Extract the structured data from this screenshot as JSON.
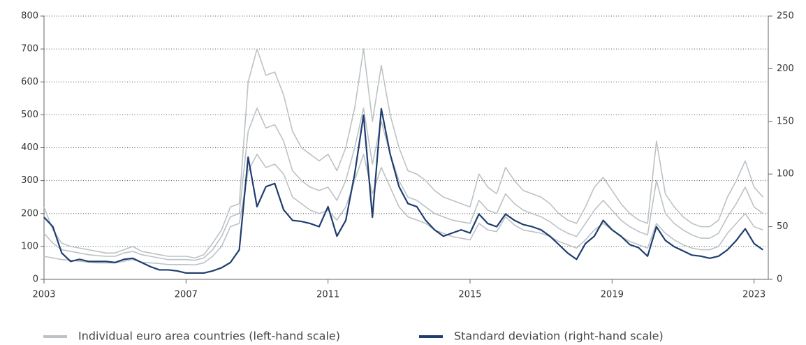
{
  "chart_data": {
    "type": "line",
    "x": [
      2003,
      2003.25,
      2003.5,
      2003.75,
      2004,
      2004.25,
      2004.5,
      2004.75,
      2005,
      2005.25,
      2005.5,
      2005.75,
      2006,
      2006.25,
      2006.5,
      2006.75,
      2007,
      2007.25,
      2007.5,
      2007.75,
      2008,
      2008.25,
      2008.5,
      2008.75,
      2009,
      2009.25,
      2009.5,
      2009.75,
      2010,
      2010.25,
      2010.5,
      2010.75,
      2011,
      2011.25,
      2011.5,
      2011.75,
      2012,
      2012.25,
      2012.5,
      2012.75,
      2013,
      2013.25,
      2013.5,
      2013.75,
      2014,
      2014.25,
      2014.5,
      2014.75,
      2015,
      2015.25,
      2015.5,
      2015.75,
      2016,
      2016.25,
      2016.5,
      2016.75,
      2017,
      2017.25,
      2017.5,
      2017.75,
      2018,
      2018.25,
      2018.5,
      2018.75,
      2019,
      2019.25,
      2019.5,
      2019.75,
      2020,
      2020.25,
      2020.5,
      2020.75,
      2021,
      2021.25,
      2021.5,
      2021.75,
      2022,
      2022.25,
      2022.5,
      2022.75,
      2023,
      2023.25
    ],
    "xlim": [
      2003,
      2023.4
    ],
    "xticks": [
      2003,
      2007,
      2011,
      2015,
      2019,
      2023
    ],
    "ylim": [
      0,
      800
    ],
    "yticks": [
      0,
      100,
      200,
      300,
      400,
      500,
      600,
      700,
      800
    ],
    "y2lim": [
      0,
      250
    ],
    "y2ticks": [
      0,
      50,
      100,
      150,
      200,
      250
    ],
    "grid": true,
    "legend": "bottom",
    "series": [
      {
        "name": "Individual euro area countries (left-hand scale)",
        "color": "#bcc2c6",
        "values": [
          220,
          150,
          110,
          100,
          95,
          90,
          85,
          80,
          80,
          90,
          100,
          85,
          80,
          75,
          70,
          70,
          70,
          65,
          75,
          110,
          150,
          220,
          230,
          600,
          700,
          620,
          630,
          560,
          450,
          400,
          380,
          360,
          380,
          330,
          400,
          520,
          700,
          480,
          650,
          500,
          400,
          330,
          320,
          300,
          270,
          250,
          240,
          230,
          220,
          320,
          280,
          260,
          340,
          300,
          270,
          260,
          250,
          230,
          200,
          180,
          170,
          220,
          280,
          310,
          270,
          230,
          200,
          180,
          170,
          420,
          260,
          220,
          190,
          170,
          160,
          160,
          180,
          250,
          300,
          360,
          280,
          250
        ]
      },
      {
        "color": "#bcc2c6",
        "values": [
          140,
          110,
          90,
          85,
          80,
          75,
          72,
          70,
          70,
          80,
          85,
          75,
          70,
          65,
          60,
          60,
          60,
          58,
          65,
          90,
          130,
          190,
          200,
          450,
          520,
          460,
          470,
          420,
          330,
          300,
          280,
          270,
          280,
          240,
          300,
          400,
          520,
          350,
          480,
          380,
          300,
          250,
          240,
          220,
          200,
          190,
          180,
          175,
          170,
          240,
          210,
          200,
          260,
          230,
          210,
          200,
          190,
          175,
          155,
          140,
          130,
          170,
          210,
          240,
          210,
          180,
          160,
          145,
          135,
          300,
          200,
          170,
          150,
          135,
          125,
          125,
          140,
          190,
          230,
          280,
          220,
          200
        ]
      },
      {
        "color": "#bcc2c6",
        "values": [
          70,
          65,
          60,
          58,
          55,
          52,
          50,
          50,
          50,
          55,
          60,
          52,
          50,
          48,
          45,
          45,
          45,
          44,
          50,
          70,
          100,
          160,
          170,
          330,
          380,
          340,
          350,
          320,
          250,
          230,
          210,
          200,
          210,
          180,
          220,
          300,
          380,
          260,
          340,
          280,
          220,
          190,
          180,
          170,
          150,
          140,
          130,
          125,
          120,
          170,
          150,
          145,
          190,
          165,
          150,
          145,
          140,
          130,
          115,
          105,
          95,
          120,
          150,
          170,
          150,
          130,
          115,
          105,
          95,
          170,
          140,
          120,
          105,
          95,
          90,
          90,
          100,
          140,
          170,
          200,
          160,
          150
        ]
      },
      {
        "name": "Standard deviation (right-hand scale)",
        "color": "#1f3d6e",
        "axis": "y2",
        "values": [
          59,
          50,
          25,
          17,
          19,
          17,
          17,
          17,
          16,
          19,
          20,
          16,
          12,
          9,
          9,
          8,
          6,
          6,
          6,
          8,
          11,
          16,
          28,
          116,
          69,
          88,
          91,
          66,
          56,
          55,
          53,
          50,
          69,
          41,
          56,
          100,
          156,
          59,
          162,
          119,
          88,
          72,
          69,
          56,
          47,
          41,
          44,
          47,
          44,
          62,
          53,
          50,
          62,
          56,
          52,
          50,
          47,
          41,
          33,
          25,
          19,
          34,
          41,
          56,
          47,
          41,
          33,
          30,
          22,
          50,
          37,
          31,
          27,
          23,
          22,
          20,
          22,
          28,
          37,
          48,
          34,
          28
        ]
      }
    ]
  }
}
